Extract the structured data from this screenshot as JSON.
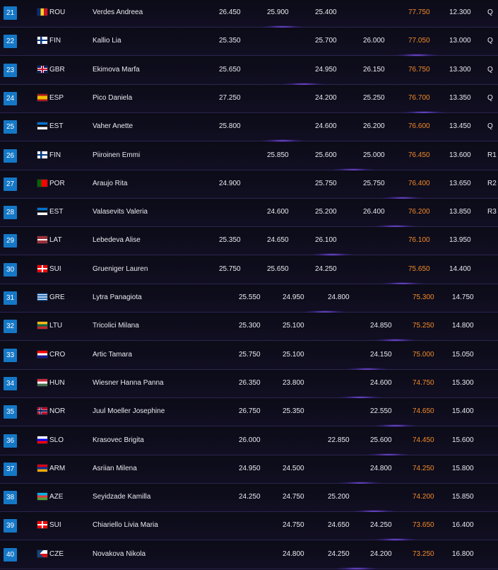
{
  "accent": "#1578c7",
  "total_color": "#f08a2a",
  "rows": [
    {
      "rank": "21",
      "flag": "rou",
      "country": "ROU",
      "name": "Verdes Andreea",
      "scores": [
        "26.450",
        "25.900",
        "25.400",
        ""
      ],
      "total": "77.750",
      "behind": "12.300",
      "qual": "Q"
    },
    {
      "rank": "22",
      "flag": "fin",
      "country": "FIN",
      "name": "Kallio Lia",
      "scores": [
        "25.350",
        "",
        "25.700",
        "26.000"
      ],
      "total": "77.050",
      "behind": "13.000",
      "qual": "Q"
    },
    {
      "rank": "23",
      "flag": "gbr",
      "country": "GBR",
      "name": "Ekimova Marfa",
      "scores": [
        "25.650",
        "",
        "24.950",
        "26.150"
      ],
      "total": "76.750",
      "behind": "13.300",
      "qual": "Q"
    },
    {
      "rank": "24",
      "flag": "esp",
      "country": "ESP",
      "name": "Pico Daniela",
      "scores": [
        "27.250",
        "",
        "24.200",
        "25.250"
      ],
      "total": "76.700",
      "behind": "13.350",
      "qual": "Q"
    },
    {
      "rank": "25",
      "flag": "est",
      "country": "EST",
      "name": "Vaher Anette",
      "scores": [
        "25.800",
        "",
        "24.600",
        "26.200"
      ],
      "total": "76.600",
      "behind": "13.450",
      "qual": "Q"
    },
    {
      "rank": "26",
      "flag": "fin",
      "country": "FIN",
      "name": "Piiroinen Emmi",
      "scores": [
        "",
        "25.850",
        "25.600",
        "25.000"
      ],
      "total": "76.450",
      "behind": "13.600",
      "qual": "R1"
    },
    {
      "rank": "27",
      "flag": "por",
      "country": "POR",
      "name": "Araujo Rita",
      "scores": [
        "24.900",
        "",
        "25.750",
        "25.750"
      ],
      "total": "76.400",
      "behind": "13.650",
      "qual": "R2"
    },
    {
      "rank": "28",
      "flag": "est",
      "country": "EST",
      "name": "Valasevits Valeria",
      "scores": [
        "",
        "24.600",
        "25.200",
        "26.400"
      ],
      "total": "76.200",
      "behind": "13.850",
      "qual": "R3"
    },
    {
      "rank": "29",
      "flag": "lat",
      "country": "LAT",
      "name": "Lebedeva Alise",
      "scores": [
        "25.350",
        "24.650",
        "26.100",
        ""
      ],
      "total": "76.100",
      "behind": "13.950",
      "qual": ""
    },
    {
      "rank": "30",
      "flag": "sui",
      "country": "SUI",
      "name": "Grueniger Lauren",
      "scores": [
        "25.750",
        "25.650",
        "24.250",
        ""
      ],
      "total": "75.650",
      "behind": "14.400",
      "qual": ""
    },
    {
      "rank": "31",
      "flag": "gre",
      "country": "GRE",
      "name": "Lytra Panagiota",
      "scores": [
        "25.550",
        "24.950",
        "24.800",
        ""
      ],
      "total": "75.300",
      "behind": "14.750",
      "qual": ""
    },
    {
      "rank": "32",
      "flag": "ltu",
      "country": "LTU",
      "name": "Tricolici Milana",
      "scores": [
        "25.300",
        "25.100",
        "",
        "24.850"
      ],
      "total": "75.250",
      "behind": "14.800",
      "qual": ""
    },
    {
      "rank": "33",
      "flag": "cro",
      "country": "CRO",
      "name": "Artic Tamara",
      "scores": [
        "25.750",
        "25.100",
        "",
        "24.150"
      ],
      "total": "75.000",
      "behind": "15.050",
      "qual": ""
    },
    {
      "rank": "34",
      "flag": "hun",
      "country": "HUN",
      "name": "Wiesner Hanna Panna",
      "scores": [
        "26.350",
        "23.800",
        "",
        "24.600"
      ],
      "total": "74.750",
      "behind": "15.300",
      "qual": ""
    },
    {
      "rank": "35",
      "flag": "nor",
      "country": "NOR",
      "name": "Juul Moeller Josephine",
      "scores": [
        "26.750",
        "25.350",
        "",
        "22.550"
      ],
      "total": "74.650",
      "behind": "15.400",
      "qual": ""
    },
    {
      "rank": "36",
      "flag": "slo",
      "country": "SLO",
      "name": "Krasovec Brigita",
      "scores": [
        "26.000",
        "",
        "22.850",
        "25.600"
      ],
      "total": "74.450",
      "behind": "15.600",
      "qual": ""
    },
    {
      "rank": "37",
      "flag": "arm",
      "country": "ARM",
      "name": "Asriian Milena",
      "scores": [
        "24.950",
        "24.500",
        "",
        "24.800"
      ],
      "total": "74.250",
      "behind": "15.800",
      "qual": ""
    },
    {
      "rank": "38",
      "flag": "aze",
      "country": "AZE",
      "name": "Seyidzade Kamilla",
      "scores": [
        "24.250",
        "24.750",
        "25.200",
        ""
      ],
      "total": "74.200",
      "behind": "15.850",
      "qual": ""
    },
    {
      "rank": "39",
      "flag": "sui",
      "country": "SUI",
      "name": "Chiariello Livia Maria",
      "scores": [
        "",
        "24.750",
        "24.650",
        "24.250"
      ],
      "total": "73.650",
      "behind": "16.400",
      "qual": ""
    },
    {
      "rank": "40",
      "flag": "cze",
      "country": "CZE",
      "name": "Novakova Nikola",
      "scores": [
        "",
        "24.800",
        "24.250",
        "24.200"
      ],
      "total": "73.250",
      "behind": "16.800",
      "qual": ""
    }
  ]
}
